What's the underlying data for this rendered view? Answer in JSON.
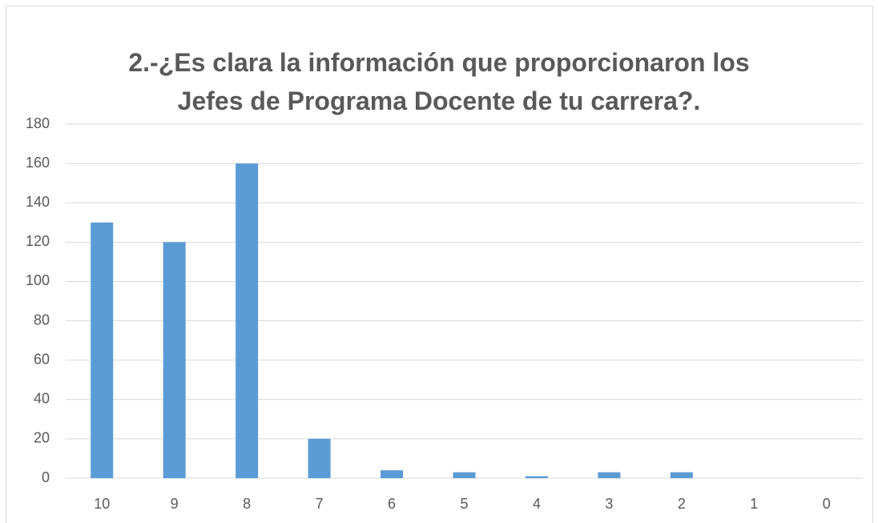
{
  "chart_data": {
    "type": "bar",
    "title": "2.-¿Es clara la información que proporcionaron los Jefes de Programa Docente de tu carrera?.",
    "categories": [
      "10",
      "9",
      "8",
      "7",
      "6",
      "5",
      "4",
      "3",
      "2",
      "1",
      "0"
    ],
    "values": [
      130,
      120,
      160,
      20,
      4,
      3,
      1,
      3,
      3,
      0,
      0
    ],
    "color": "#5b9bd5",
    "ylim": [
      0,
      180
    ],
    "yticks": [
      0,
      20,
      40,
      60,
      80,
      100,
      120,
      140,
      160,
      180
    ],
    "grid": true
  }
}
